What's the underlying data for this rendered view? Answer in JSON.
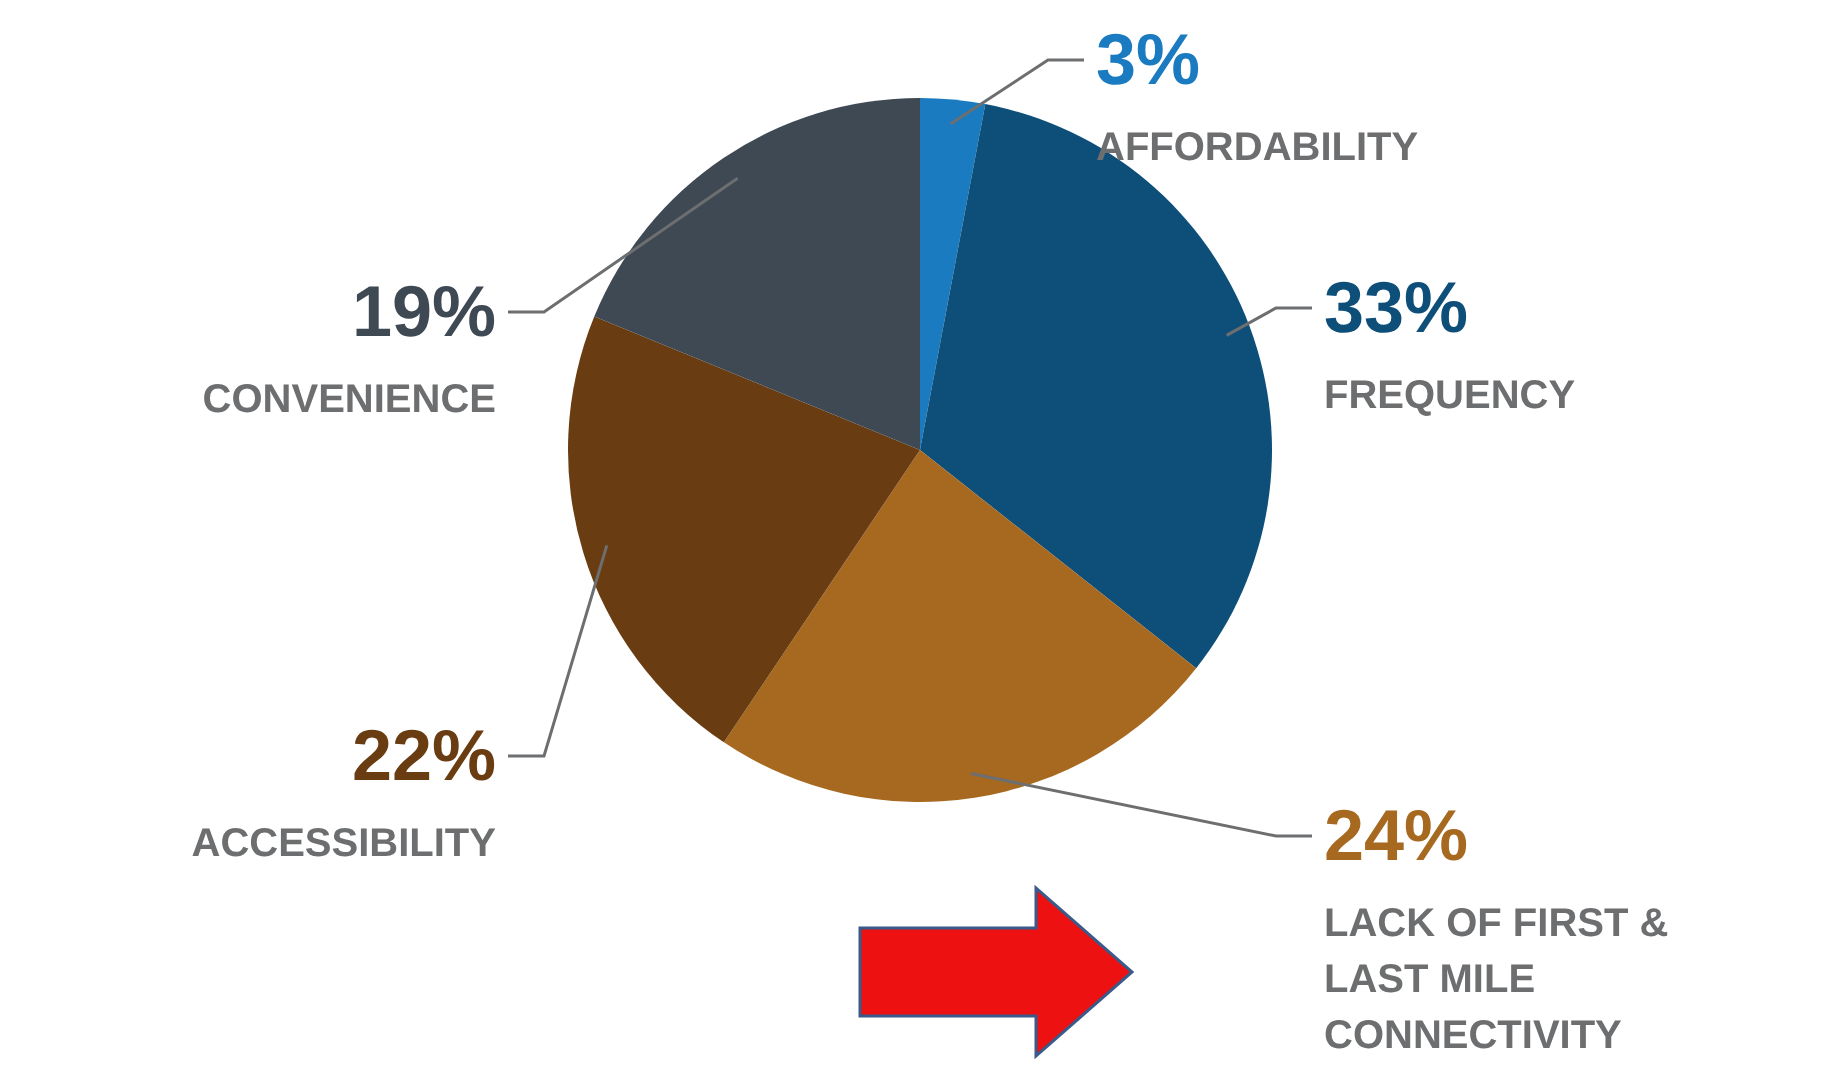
{
  "chart_data": {
    "type": "pie",
    "categories": [
      "AFFORDABILITY",
      "FREQUENCY",
      "LACK OF FIRST & LAST MILE CONNECTIVITY",
      "ACCESSIBILITY",
      "CONVENIENCE"
    ],
    "values": [
      3,
      33,
      24,
      22,
      19
    ],
    "colors": [
      "#1b7bc0",
      "#0e4f79",
      "#a7691f",
      "#6a3c12",
      "#3e4953"
    ],
    "value_labels": [
      "3%",
      "33%",
      "24%",
      "22%",
      "19%"
    ]
  }
}
